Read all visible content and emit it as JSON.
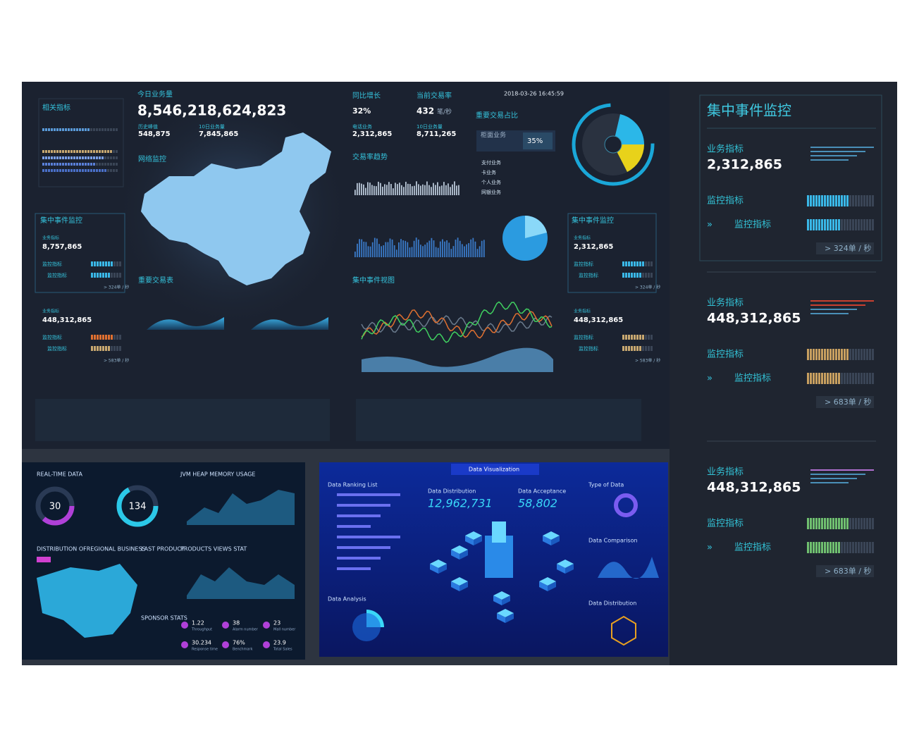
{
  "main": {
    "related": "相关指标",
    "today_label": "今日业务量",
    "today_value": "8,546,218,624,823",
    "stats": [
      {
        "label": "历史峰值",
        "value": "548,875"
      },
      {
        "label": "10日业务量",
        "value": "7,845,865"
      }
    ],
    "network": "网络监控",
    "yoy_label": "同比增长",
    "yoy": "32%",
    "rate_label": "当前交易率",
    "rate": "432",
    "rate_unit": "笔/秒",
    "sub": [
      {
        "label": "电话业务",
        "value": "2,312,865"
      },
      {
        "label": "10日业务量",
        "value": "8,711,265"
      }
    ],
    "datetime": "2018-03-26 16:45:59",
    "share_label": "重要交易占比",
    "share_item": "柜面业务",
    "share": "35%",
    "trend": "交易率趋势",
    "list": [
      "支付业务",
      "卡业务",
      "个人业务",
      "网银业务"
    ],
    "table": "重要交易表",
    "view": "集中事件视图",
    "left": {
      "title": "集中事件监控",
      "biz": "业务指标",
      "value": "8,757,865",
      "m1": "监控指标",
      "m2": "监控指标",
      "rate": "> 324单 / 秒",
      "biz2": "业务指标",
      "value2": "448,312,865",
      "m3": "监控指标",
      "m4": "监控指标",
      "rate2": "> 583单 / 秒"
    },
    "right": {
      "title": "集中事件监控",
      "biz": "业务指标",
      "value": "2,312,865",
      "m1": "监控指标",
      "m2": "监控指标",
      "rate": "> 324单 / 秒",
      "biz2": "业务指标",
      "value2": "448,312,865",
      "m3": "监控指标",
      "m4": "监控指标",
      "rate2": "> 583单 / 秒"
    }
  },
  "side": {
    "title": "集中事件监控",
    "blocks": [
      {
        "label": "业务指标",
        "value": "2,312,865",
        "m1": "监控指标",
        "m2": "监控指标",
        "rate": "> 324单 / 秒"
      },
      {
        "label": "业务指标",
        "value": "448,312,865",
        "m1": "监控指标",
        "m2": "监控指标",
        "rate": "> 683单 / 秒"
      },
      {
        "label": "业务指标",
        "value": "448,312,865",
        "m1": "监控指标",
        "m2": "监控指标",
        "rate": "> 683单 / 秒"
      }
    ]
  },
  "bottom_left": {
    "realtime": "REAL-TIME DATA",
    "jvm": "JVM HEAP MEMORY USAGE",
    "gauge1": "30",
    "gauge2": "134",
    "distribution": "DISTRIBUTION OFREGIONAL BUSINESS",
    "last_product": "LAST PRODUCT",
    "views": "PRODUCTS VIEWS STAT",
    "sponsor": "SPONSOR STATS",
    "kpis": [
      {
        "value": "1.22",
        "label": "Throughput"
      },
      {
        "value": "38",
        "label": "Alarm number"
      },
      {
        "value": "23",
        "label": "Mall number"
      },
      {
        "value": "30.234",
        "label": "Response time"
      },
      {
        "value": "76%",
        "label": "Benchmark"
      },
      {
        "value": "23.9",
        "label": "Total Sales"
      }
    ]
  },
  "bottom_right": {
    "title": "Data Visualization",
    "ranking": "Data Ranking List",
    "dist_label": "Data Distribution",
    "dist_value": "12,962,731",
    "accept_label": "Data Acceptance",
    "accept_value": "58,802",
    "type": "Type of Data",
    "comparison": "Data Comparison",
    "analysis": "Data Analysis",
    "distribution": "Data Distribution"
  }
}
